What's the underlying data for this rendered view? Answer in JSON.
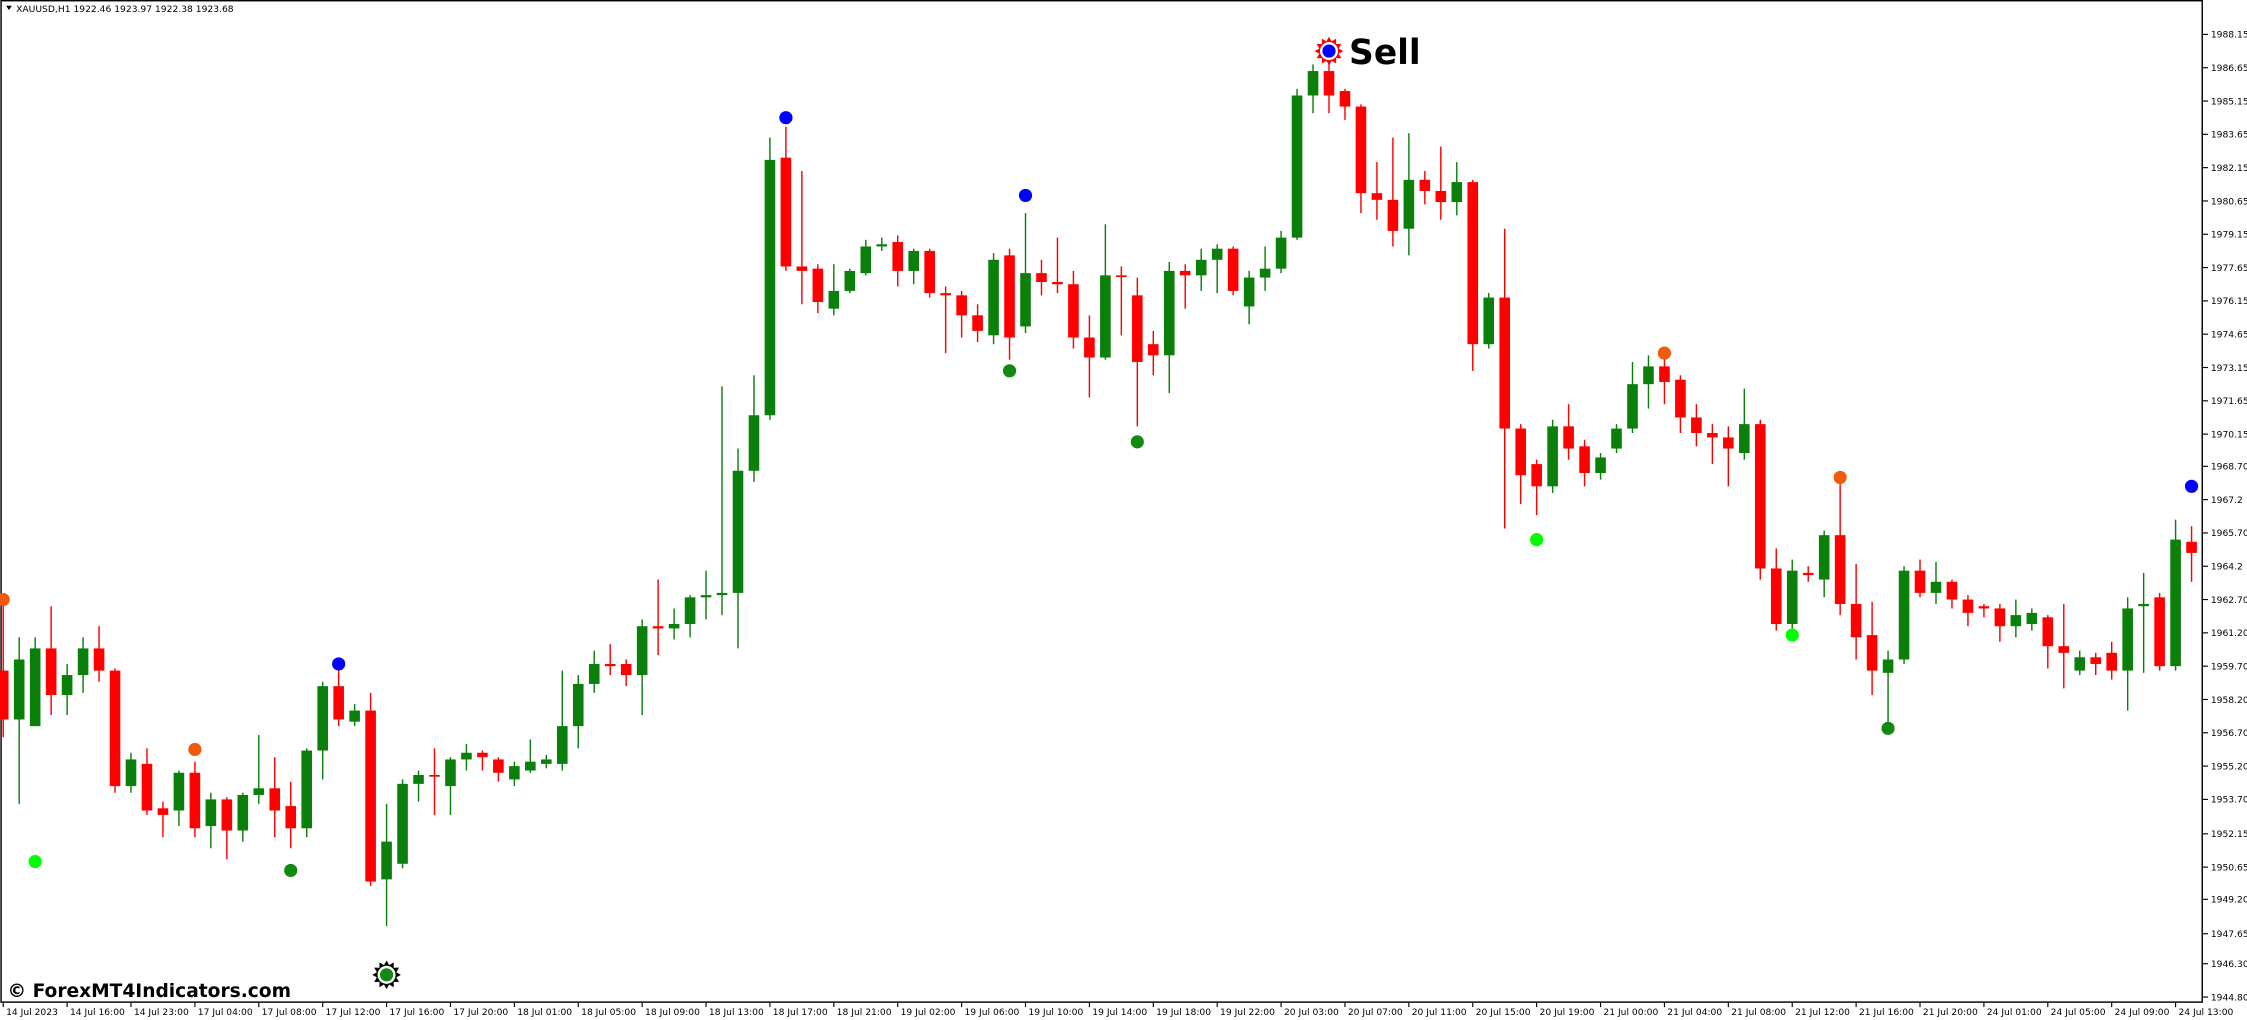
{
  "chart_data": {
    "type": "candlestick",
    "title": "XAUUSD,H1  1922.46 1923.97 1922.38 1923.68",
    "watermark": "© ForexMT4Indicators.com",
    "up_color": "#0a7f0a",
    "down_color": "#ff0000",
    "categories": [
      "14 Jul 2023",
      null,
      null,
      null,
      "14 Jul 16:00",
      null,
      null,
      null,
      "14 Jul 23:00",
      null,
      null,
      null,
      "17 Jul 04:00",
      null,
      null,
      null,
      "17 Jul 08:00",
      null,
      null,
      null,
      "17 Jul 12:00",
      null,
      null,
      null,
      "17 Jul 16:00",
      null,
      null,
      null,
      "17 Jul 20:00",
      null,
      null,
      null,
      "18 Jul 01:00",
      null,
      null,
      null,
      "18 Jul 05:00",
      null,
      null,
      null,
      "18 Jul 09:00",
      null,
      null,
      null,
      "18 Jul 13:00",
      null,
      null,
      null,
      "18 Jul 17:00",
      null,
      null,
      null,
      "18 Jul 21:00",
      null,
      null,
      null,
      "19 Jul 02:00",
      null,
      null,
      null,
      "19 Jul 06:00",
      null,
      null,
      null,
      "19 Jul 10:00",
      null,
      null,
      null,
      "19 Jul 14:00",
      null,
      null,
      null,
      "19 Jul 18:00",
      null,
      null,
      null,
      "19 Jul 22:00",
      null,
      null,
      null,
      "20 Jul 03:00",
      null,
      null,
      null,
      "20 Jul 07:00",
      null,
      null,
      null,
      "20 Jul 11:00",
      null,
      null,
      null,
      "20 Jul 15:00",
      null,
      null,
      null,
      "20 Jul 19:00",
      null,
      null,
      null,
      "21 Jul 00:00",
      null,
      null,
      null,
      "21 Jul 04:00",
      null,
      null,
      null,
      "21 Jul 08:00",
      null,
      null,
      null,
      "21 Jul 12:00",
      null,
      null,
      null,
      "21 Jul 16:00",
      null,
      null,
      null,
      "21 Jul 20:00",
      null,
      null,
      null,
      "24 Jul 01:00",
      null,
      null,
      null,
      "24 Jul 05:00",
      null,
      null,
      null,
      "24 Jul 09:00",
      null,
      null,
      null,
      "24 Jul 13:00",
      null
    ],
    "open": [
      1959.5,
      1957.3,
      1957,
      1960.5,
      1958.4,
      1959.3,
      1960.5,
      1959.5,
      1954.3,
      1955.3,
      1953.3,
      1953.2,
      1954.9,
      1952.5,
      1953.7,
      1952.3,
      1953.9,
      1954.2,
      1953.4,
      1952.4,
      1955.9,
      1958.8,
      1957.2,
      1957.7,
      1950.1,
      1950.8,
      1954.4,
      1954.8,
      1954.3,
      1955.5,
      1955.8,
      1955.5,
      1954.6,
      1955.0,
      1955.3,
      1955.3,
      1957,
      1958.9,
      1959.8,
      1959.8,
      1959.3,
      1961.5,
      1961.4,
      1961.6,
      1962.8,
      1962.9,
      1963,
      1968.5,
      1971,
      1982.6,
      1977.7,
      1977.6,
      1975.8,
      1976.6,
      1977.4,
      1978.6,
      1978.8,
      1977.5,
      1978.4,
      1976.5,
      1976.4,
      1975.5,
      1974.6,
      1978.2,
      1975,
      1977.4,
      1977,
      1976.9,
      1974.5,
      1973.6,
      1977.3,
      1976.4,
      1974.2,
      1973.7,
      1977.5,
      1977.3,
      1978,
      1978.5,
      1975.9,
      1977.2,
      1977.6,
      1979,
      1985.4,
      1986.5,
      1985.6,
      1984.9,
      1981,
      1980.7,
      1979.4,
      1981.6,
      1981.1,
      1980.6,
      1981.5,
      1974.2,
      1976.3,
      1970.4,
      1968.8,
      1967.8,
      1970.5,
      1969.6,
      1968.4,
      1969.5,
      1970.4,
      1972.4,
      1973.2,
      1972.6,
      1970.9,
      1970.2,
      1970,
      1969.3,
      1970.6,
      1964.1,
      1961.6,
      1963.9,
      1963.6,
      1965.6,
      1962.5,
      1961.1,
      1959.4,
      1960,
      1964,
      1963,
      1963.5,
      1962.7,
      1962.4,
      1962.3,
      1961.5,
      1961.6,
      1961.9,
      1960.6,
      1959.5,
      1960.1,
      1960.3,
      1959.5,
      1962.4,
      1962.8,
      1959.7,
      1965.3
    ],
    "high": [
      1962.8,
      1961,
      1961,
      1962.4,
      1959.8,
      1961,
      1961.5,
      1959.6,
      1955.8,
      1956,
      1953.6,
      1955,
      1955.4,
      1954,
      1953.8,
      1954,
      1956.6,
      1955.6,
      1954.5,
      1956,
      1959,
      1959.6,
      1958,
      1958.5,
      1953.5,
      1954.6,
      1955,
      1956,
      1955.6,
      1956.2,
      1955.9,
      1955.6,
      1955.4,
      1956.4,
      1955.7,
      1959.5,
      1959.3,
      1960.4,
      1960.7,
      1960,
      1961.8,
      1963.6,
      1962.3,
      1962.9,
      1964,
      1972.3,
      1969.5,
      1972.8,
      1983.5,
      1984,
      1982,
      1977.8,
      1977.8,
      1977.6,
      1978.9,
      1979,
      1979.1,
      1978.5,
      1978.5,
      1976.8,
      1976.6,
      1976,
      1978.3,
      1978.5,
      1980.1,
      1978,
      1979,
      1977.5,
      1975.5,
      1979.6,
      1977.7,
      1977.2,
      1974.8,
      1977.9,
      1977.8,
      1978.5,
      1978.7,
      1978.6,
      1977.5,
      1978.6,
      1979.3,
      1985.7,
      1986.8,
      1987.6,
      1985.7,
      1985,
      1982.4,
      1983.5,
      1983.7,
      1982,
      1983.1,
      1982.4,
      1981.6,
      1976.5,
      1979.4,
      1970.6,
      1969,
      1970.8,
      1971.5,
      1969.9,
      1969.3,
      1970.6,
      1973.4,
      1973.7,
      1973.8,
      1972.8,
      1971.5,
      1970.6,
      1970.5,
      1972.2,
      1970.8,
      1965,
      1964.5,
      1964.2,
      1965.8,
      1967.9,
      1964.3,
      1962.6,
      1960.4,
      1964.2,
      1964.5,
      1964.4,
      1963.6,
      1962.9,
      1962.5,
      1962.5,
      1962.7,
      1962.3,
      1962,
      1962.5,
      1960.4,
      1960.3,
      1960.8,
      1962.8,
      1963.9,
      1963,
      1966.3,
      1966
    ],
    "low": [
      1956.5,
      1953.5,
      1957,
      1957.5,
      1957.5,
      1958.5,
      1959,
      1954,
      1954,
      1953,
      1952,
      1952.5,
      1952,
      1951.5,
      1951,
      1951.8,
      1953.5,
      1952,
      1951.5,
      1952,
      1954.6,
      1957,
      1957,
      1949.8,
      1948,
      1950.6,
      1953.6,
      1953,
      1953,
      1955,
      1955,
      1954.5,
      1954.3,
      1954.9,
      1955.1,
      1955,
      1956,
      1958.5,
      1959.3,
      1958.8,
      1957.5,
      1960.2,
      1960.9,
      1961,
      1961.8,
      1962,
      1960.5,
      1968,
      1970.8,
      1977.5,
      1976,
      1975.6,
      1975.5,
      1976.5,
      1977.3,
      1978.4,
      1976.8,
      1976.9,
      1976.3,
      1973.8,
      1974.5,
      1974.3,
      1974.2,
      1973.5,
      1974.7,
      1976.4,
      1976.5,
      1974,
      1971.8,
      1973.5,
      1974.6,
      1970.5,
      1972.8,
      1972,
      1975.8,
      1976.6,
      1976.5,
      1976.4,
      1975.1,
      1976.6,
      1977.4,
      1978.9,
      1984.6,
      1984.6,
      1984.3,
      1980.1,
      1979.8,
      1978.6,
      1978.2,
      1980.5,
      1979.8,
      1980,
      1973,
      1974,
      1965.9,
      1967,
      1966.5,
      1967.5,
      1969,
      1967.8,
      1968.1,
      1969.3,
      1970.2,
      1971.3,
      1971.5,
      1970.2,
      1969.6,
      1968.8,
      1967.8,
      1969,
      1963.6,
      1961.3,
      1961.1,
      1963.5,
      1962.8,
      1962,
      1960,
      1958.4,
      1957.2,
      1959.8,
      1962.8,
      1962.5,
      1962.3,
      1961.5,
      1961.9,
      1960.8,
      1961,
      1961.3,
      1959.6,
      1958.7,
      1959.3,
      1959.3,
      1959.1,
      1957.7,
      1959.4,
      1959.5,
      1959.5,
      1963.5
    ],
    "close": [
      1957.3,
      1960,
      1960.5,
      1958.4,
      1959.3,
      1960.5,
      1959.5,
      1954.3,
      1955.5,
      1953.2,
      1953,
      1954.9,
      1952.4,
      1953.7,
      1952.3,
      1953.9,
      1954.2,
      1953.2,
      1952.4,
      1955.9,
      1958.8,
      1957.3,
      1957.7,
      1950,
      1951.8,
      1954.4,
      1954.8,
      1954.75,
      1955.5,
      1955.8,
      1955.6,
      1954.9,
      1955.2,
      1955.4,
      1955.5,
      1957,
      1958.9,
      1959.8,
      1959.7,
      1959.3,
      1961.5,
      1961.4,
      1961.6,
      1962.8,
      1962.9,
      1963,
      1968.5,
      1971,
      1982.5,
      1977.7,
      1977.5,
      1976.1,
      1976.6,
      1977.5,
      1978.6,
      1978.7,
      1977.5,
      1978.4,
      1976.5,
      1976.4,
      1975.5,
      1974.8,
      1978,
      1974.5,
      1977.4,
      1977,
      1976.9,
      1974.5,
      1973.6,
      1977.3,
      1977.25,
      1973.4,
      1973.7,
      1977.5,
      1977.3,
      1978,
      1978.5,
      1976.6,
      1977.2,
      1977.6,
      1979,
      1985.4,
      1986.5,
      1985.4,
      1984.9,
      1981,
      1980.7,
      1979.3,
      1981.6,
      1981.1,
      1980.6,
      1981.5,
      1974.2,
      1976.3,
      1970.4,
      1968.3,
      1967.8,
      1970.5,
      1969.5,
      1968.4,
      1969.1,
      1970.4,
      1972.4,
      1973.2,
      1972.5,
      1970.9,
      1970.2,
      1970,
      1969.5,
      1970.6,
      1964.1,
      1961.6,
      1964,
      1963.8,
      1965.6,
      1962.5,
      1961,
      1959.5,
      1960,
      1964,
      1963,
      1963.5,
      1962.7,
      1962.1,
      1962.3,
      1961.5,
      1962,
      1962.1,
      1960.6,
      1960.3,
      1960.1,
      1959.8,
      1959.5,
      1962.3,
      1962.5,
      1959.7,
      1965.4,
      1964.8
    ],
    "ylim": [
      1944.54,
      1989.7
    ],
    "yticks": [
      1988.15,
      1986.65,
      1985.15,
      1983.65,
      1982.15,
      1980.65,
      1979.15,
      1977.65,
      1976.15,
      1974.65,
      1973.15,
      1971.65,
      1970.15,
      {
        "value": 1968.7,
        "label": "1968.70"
      },
      1967.2,
      {
        "value": 1965.7,
        "label": "1965.70"
      },
      1964.2,
      {
        "value": 1962.7,
        "label": "1962.70"
      },
      {
        "value": 1961.2,
        "label": "1961.20"
      },
      {
        "value": 1959.7,
        "label": "1959.70"
      },
      {
        "value": 1958.2,
        "label": "1958.20"
      },
      {
        "value": 1956.7,
        "label": "1956.70"
      },
      {
        "value": 1955.2,
        "label": "1955.20"
      },
      {
        "value": 1953.7,
        "label": "1953.70"
      },
      1952.15,
      1950.65,
      {
        "value": 1949.2,
        "label": "1949.20"
      },
      1947.65,
      {
        "value": 1946.3,
        "label": "1946.30"
      },
      {
        "value": 1944.8,
        "label": "1944.80"
      }
    ],
    "signals": [
      {
        "x": 0,
        "price": 1962.7,
        "color": "#f05a0a"
      },
      {
        "x": 2,
        "price": 1950.9,
        "color": "#00ff00"
      },
      {
        "x": 12,
        "price": 1955.95,
        "color": "#f05a0a"
      },
      {
        "x": 18,
        "price": 1950.5,
        "color": "#128a12"
      },
      {
        "x": 21,
        "price": 1959.8,
        "color": "#0000ff"
      },
      {
        "x": 24,
        "price": 1945.8,
        "color": "#128a12",
        "ring": "#000000"
      },
      {
        "x": 49,
        "price": 1984.4,
        "color": "#0000ff"
      },
      {
        "x": 63,
        "price": 1973,
        "color": "#128a12"
      },
      {
        "x": 64,
        "price": 1980.9,
        "color": "#0000ff"
      },
      {
        "x": 71,
        "price": 1969.8,
        "color": "#128a12"
      },
      {
        "x": 83,
        "price": 1987.4,
        "color": "#0000ff",
        "ring": "#ff0000",
        "label": "Sell"
      },
      {
        "x": 96,
        "price": 1965.4,
        "color": "#00ff00"
      },
      {
        "x": 104,
        "price": 1973.8,
        "color": "#f05a0a"
      },
      {
        "x": 112,
        "price": 1961.1,
        "color": "#00ff00"
      },
      {
        "x": 115,
        "price": 1968.2,
        "color": "#f05a0a"
      },
      {
        "x": 118,
        "price": 1956.9,
        "color": "#128a12"
      },
      {
        "x": 137,
        "price": 1967.8,
        "color": "#0000ff"
      }
    ]
  }
}
